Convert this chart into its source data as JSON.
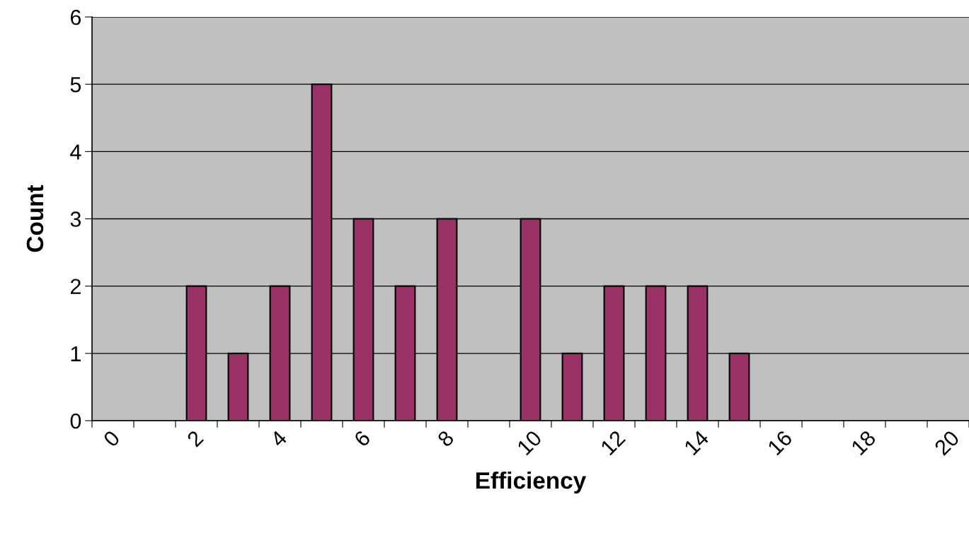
{
  "chart_data": {
    "type": "bar",
    "xlabel": "Efficiency",
    "ylabel": "Count",
    "categories": [
      "0",
      null,
      "2",
      null,
      "4",
      null,
      "6",
      null,
      "8",
      null,
      "10",
      null,
      "12",
      null,
      "14",
      null,
      "16",
      null,
      "18",
      null,
      "20"
    ],
    "values": [
      0,
      0,
      2,
      1,
      2,
      5,
      3,
      2,
      3,
      0,
      3,
      1,
      2,
      2,
      2,
      1,
      0,
      0,
      0,
      0,
      0
    ],
    "color": "#993366",
    "ylim": [
      0,
      6
    ],
    "yticks": [
      0,
      1,
      2,
      3,
      4,
      5,
      6
    ],
    "grid": "y"
  }
}
